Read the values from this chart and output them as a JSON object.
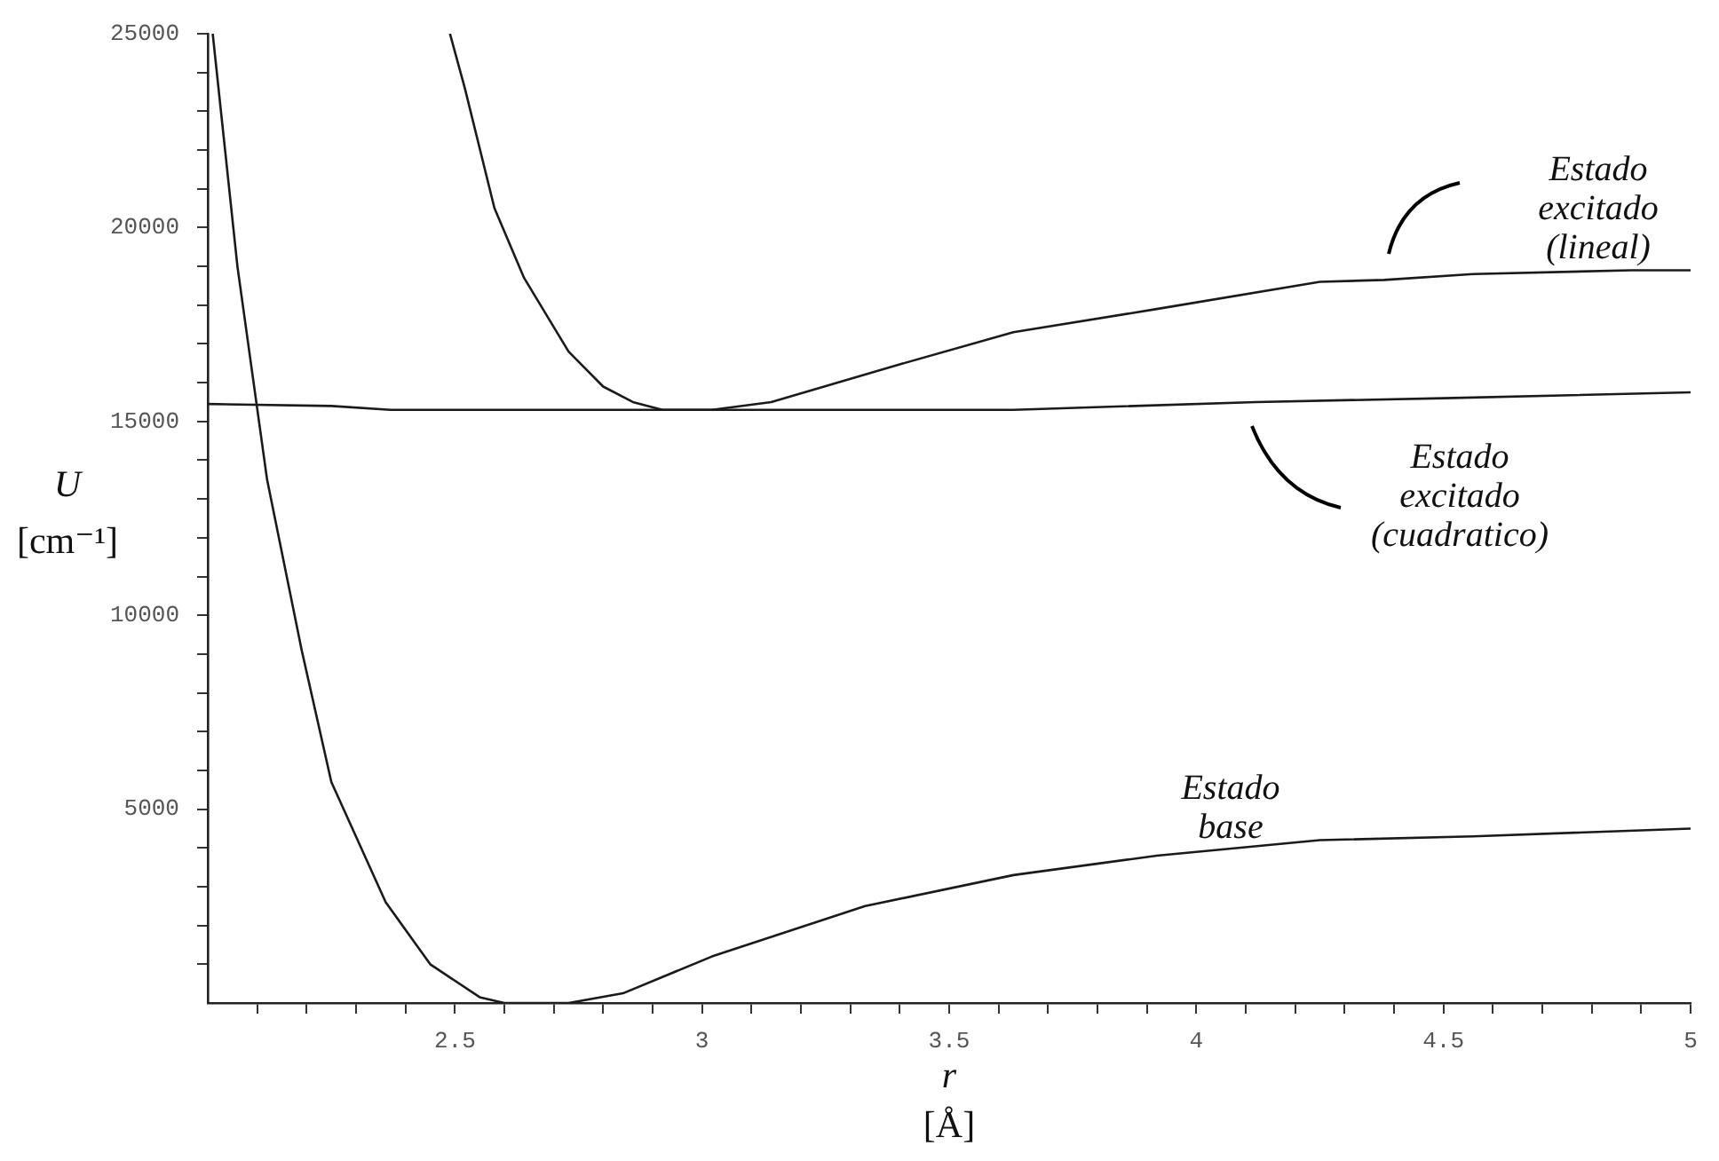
{
  "chart_data": {
    "type": "line",
    "xlabel": "r [Å]",
    "ylabel": "U [cm⁻¹]",
    "xlim": [
      2,
      5
    ],
    "xticks": [
      {
        "value": 2.1,
        "label": null
      },
      {
        "value": 2.2,
        "label": null
      },
      {
        "value": 2.3,
        "label": null
      },
      {
        "value": 2.4,
        "label": null
      },
      2.5,
      {
        "value": 2.6,
        "label": null
      },
      {
        "value": 2.7,
        "label": null
      },
      {
        "value": 2.8,
        "label": null
      },
      {
        "value": 2.9,
        "label": null
      },
      3,
      {
        "value": 3.1,
        "label": null
      },
      {
        "value": 3.2,
        "label": null
      },
      {
        "value": 3.3,
        "label": null
      },
      {
        "value": 3.4,
        "label": null
      },
      3.5,
      {
        "value": 3.6,
        "label": null
      },
      {
        "value": 3.7,
        "label": null
      },
      {
        "value": 3.8,
        "label": null
      },
      {
        "value": 3.9,
        "label": null
      },
      4,
      {
        "value": 4.1,
        "label": null
      },
      {
        "value": 4.2,
        "label": null
      },
      {
        "value": 4.3,
        "label": null
      },
      {
        "value": 4.4,
        "label": null
      },
      4.5,
      {
        "value": 4.6,
        "label": null
      },
      {
        "value": 4.7,
        "label": null
      },
      {
        "value": 4.8,
        "label": null
      },
      {
        "value": 4.9,
        "label": null
      },
      5
    ],
    "ylim": [
      0,
      25000
    ],
    "yticks": [
      {
        "value": 1000,
        "label": null
      },
      {
        "value": 2000,
        "label": null
      },
      {
        "value": 3000,
        "label": null
      },
      {
        "value": 4000,
        "label": null
      },
      5000,
      {
        "value": 6000,
        "label": null
      },
      {
        "value": 7000,
        "label": null
      },
      {
        "value": 8000,
        "label": null
      },
      {
        "value": 9000,
        "label": null
      },
      10000,
      {
        "value": 11000,
        "label": null
      },
      {
        "value": 12000,
        "label": null
      },
      {
        "value": 13000,
        "label": null
      },
      {
        "value": 14000,
        "label": null
      },
      15000,
      {
        "value": 16000,
        "label": null
      },
      {
        "value": 17000,
        "label": null
      },
      {
        "value": 18000,
        "label": null
      },
      {
        "value": 19000,
        "label": null
      },
      20000,
      {
        "value": 21000,
        "label": null
      },
      {
        "value": 22000,
        "label": null
      },
      {
        "value": 23000,
        "label": null
      },
      {
        "value": 24000,
        "label": null
      },
      25000
    ],
    "grid": false,
    "legend": false,
    "marker": "none",
    "line_style": "solid",
    "series": [
      {
        "name": "Estado excitado (lineal)",
        "color": "#1a1a1a",
        "x": [
          2.49,
          2.52,
          2.58,
          2.64,
          2.73,
          2.8,
          2.86,
          2.92,
          3.02,
          3.14,
          3.38,
          3.63,
          3.92,
          4.25,
          4.38,
          4.56,
          4.88,
          5.0
        ],
        "values": [
          25000,
          23600,
          20500,
          18700,
          16800,
          15900,
          15500,
          15300,
          15300,
          15500,
          16400,
          17300,
          17900,
          18600,
          18650,
          18800,
          18900,
          18900
        ]
      },
      {
        "name": "Estado excitado (cuadratico)",
        "color": "#1a1a1a",
        "x": [
          2.0,
          2.25,
          2.37,
          3.02,
          3.63,
          4.12,
          4.5,
          5.0
        ],
        "values": [
          15450,
          15400,
          15300,
          15300,
          15300,
          15500,
          15600,
          15750
        ]
      },
      {
        "name": "Estado base",
        "color": "#1a1a1a",
        "x": [
          2.01,
          2.06,
          2.12,
          2.19,
          2.25,
          2.36,
          2.45,
          2.55,
          2.6,
          2.73,
          2.84,
          3.02,
          3.33,
          3.63,
          3.92,
          4.25,
          4.56,
          5.0
        ],
        "values": [
          25000,
          19000,
          13500,
          9100,
          5700,
          2600,
          1000,
          150,
          0,
          0,
          250,
          1200,
          2500,
          3300,
          3800,
          4200,
          4300,
          4500
        ]
      }
    ]
  }
}
